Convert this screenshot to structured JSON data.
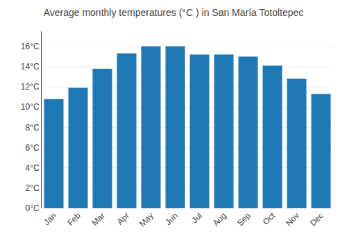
{
  "chart_data": {
    "type": "bar",
    "title": "Average monthly temperatures (°C ) in San María Totoltepec",
    "categories": [
      "Jan",
      "Feb",
      "Mar",
      "Apr",
      "May",
      "Jun",
      "Jul",
      "Aug",
      "Sep",
      "Oct",
      "Nov",
      "Dec"
    ],
    "values": [
      10.8,
      11.9,
      13.8,
      15.3,
      16.0,
      16.0,
      15.2,
      15.2,
      15.0,
      14.1,
      12.8,
      11.3
    ],
    "ylim": [
      0,
      17.5
    ],
    "yticks": [
      {
        "value": 0,
        "label": "0°C"
      },
      {
        "value": 2,
        "label": "2°C"
      },
      {
        "value": 4,
        "label": "4°C"
      },
      {
        "value": 6,
        "label": "6°C"
      },
      {
        "value": 8,
        "label": "8°C"
      },
      {
        "value": 10,
        "label": "10°C"
      },
      {
        "value": 12,
        "label": "12°C"
      },
      {
        "value": 14,
        "label": "14°C"
      },
      {
        "value": 16,
        "label": "16°C"
      }
    ],
    "grid": true
  }
}
